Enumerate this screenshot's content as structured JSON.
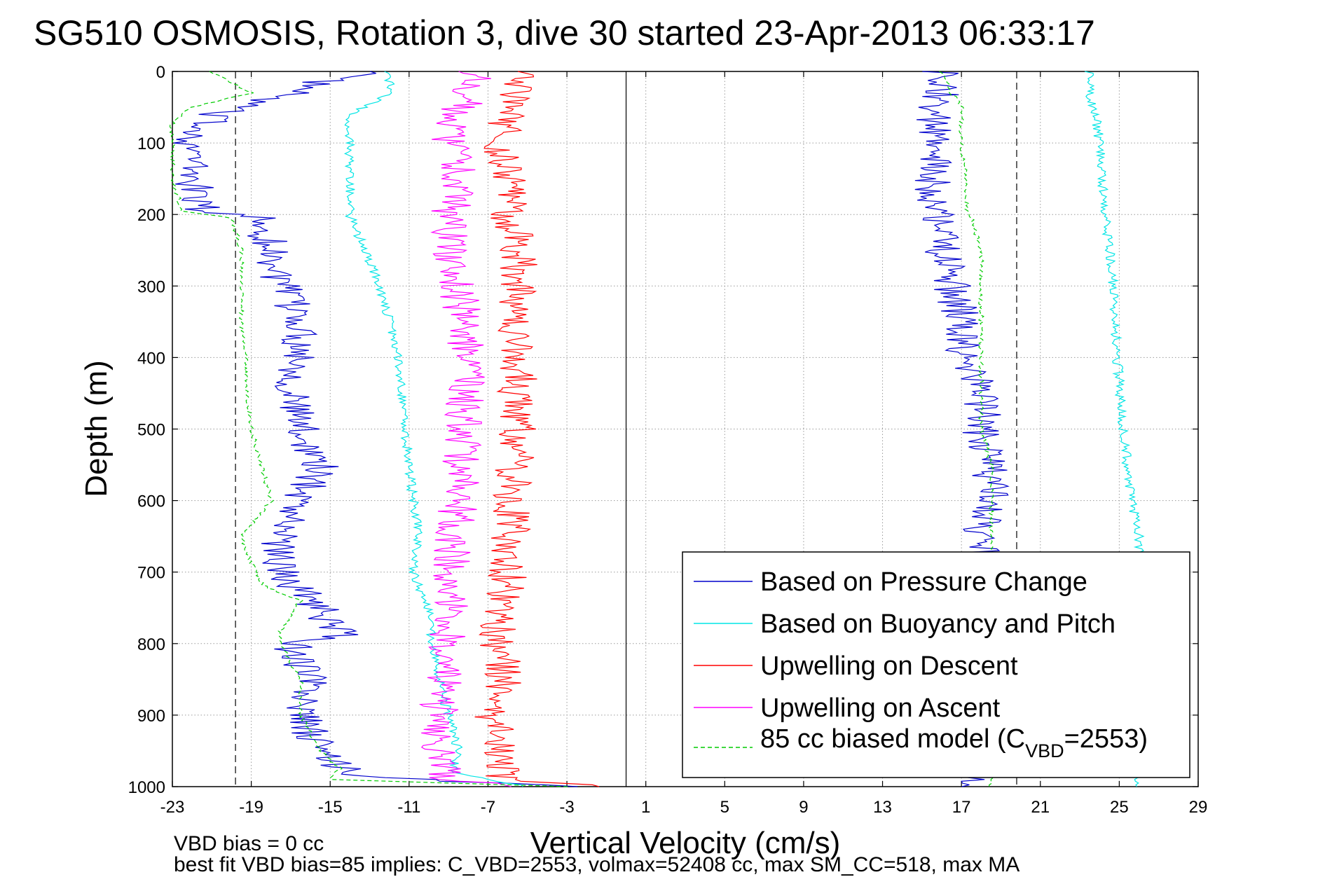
{
  "chart_data": {
    "type": "line",
    "title": "SG510 OSMOSIS, Rotation 3, dive 30 started 23-Apr-2013 06:33:17",
    "xlabel": "Vertical Velocity (cm/s)",
    "ylabel": "Depth (m)",
    "xlim": [
      -23,
      29
    ],
    "ylim": [
      0,
      1000
    ],
    "y_reversed": true,
    "grid": true,
    "legend_placement": "lower-right",
    "x_ticks": [
      "-23",
      "-19",
      "-15",
      "-11",
      "-7",
      "-3",
      "1",
      "5",
      "9",
      "13",
      "17",
      "21",
      "25",
      "29"
    ],
    "y_ticks": [
      "0",
      "100",
      "200",
      "300",
      "400",
      "500",
      "600",
      "700",
      "800",
      "900",
      "1000"
    ],
    "reference_lines": {
      "solid_x": 0,
      "dashed_x": [
        -19.8,
        19.8
      ]
    },
    "series": [
      {
        "name": "Based on Pressure Change",
        "color": "#0000cc",
        "style": "solid",
        "depth": [
          0,
          10,
          30,
          60,
          100,
          150,
          195,
          205,
          250,
          300,
          350,
          400,
          450,
          500,
          550,
          600,
          650,
          700,
          750,
          790,
          800,
          850,
          900,
          950,
          985,
          1000
        ],
        "descent": [
          -12,
          -15,
          -17,
          -21,
          -22,
          -22,
          -21.5,
          -18.5,
          -18,
          -17.5,
          -16.5,
          -16.5,
          -17,
          -16.5,
          -15.5,
          -16.5,
          -17.5,
          -17.5,
          -15.5,
          -14.5,
          -17,
          -16,
          -16.5,
          -15.5,
          -14,
          -3
        ],
        "ascent": [
          16,
          15.5,
          16,
          15.5,
          15.5,
          15.5,
          15.5,
          16,
          16,
          16.5,
          17,
          17,
          18,
          18,
          18.5,
          18.5,
          18,
          18,
          18,
          18,
          18,
          18,
          18,
          18,
          18,
          18
        ]
      },
      {
        "name": "Based on Buoyancy and Pitch",
        "color": "#00e5e5",
        "style": "solid",
        "depth": [
          0,
          30,
          60,
          100,
          200,
          300,
          400,
          500,
          600,
          650,
          700,
          750,
          800,
          850,
          900,
          950,
          980,
          1000
        ],
        "descent": [
          -12,
          -12,
          -14,
          -14,
          -14,
          -12.5,
          -11.5,
          -11.2,
          -10.8,
          -10.5,
          -10.8,
          -10,
          -9.8,
          -9.5,
          -9,
          -8.5,
          -8.8,
          -5
        ],
        "ascent": [
          23.5,
          23.5,
          23.8,
          24,
          24.3,
          24.7,
          24.9,
          25.2,
          25.6,
          26,
          26,
          26,
          26,
          26,
          26,
          26,
          26,
          26
        ]
      },
      {
        "name": "Upwelling on Descent",
        "color": "#ff0000",
        "style": "solid",
        "depth": [
          0,
          20,
          60,
          100,
          150,
          200,
          250,
          300,
          400,
          500,
          600,
          700,
          800,
          850,
          900,
          950,
          990,
          1000
        ],
        "descent": [
          -4.5,
          -5.5,
          -6,
          -6.5,
          -5.8,
          -6,
          -5.5,
          -5.5,
          -5.5,
          -5.5,
          -5.8,
          -6,
          -6.5,
          -6.2,
          -6.8,
          -6.5,
          -6.2,
          -1
        ]
      },
      {
        "name": "Upwelling on Ascent",
        "color": "#ff00ff",
        "style": "solid",
        "depth": [
          0,
          20,
          60,
          100,
          150,
          200,
          250,
          300,
          400,
          500,
          600,
          700,
          800,
          850,
          900,
          950,
          990,
          1000
        ],
        "descent": [
          -7.5,
          -7.8,
          -8.5,
          -9,
          -8.5,
          -9,
          -9,
          -8.5,
          -8,
          -8.3,
          -8.5,
          -9,
          -9,
          -9.3,
          -9.5,
          -9.5,
          -9,
          -6
        ]
      },
      {
        "name": "85 cc biased model (C_VBD=2553)",
        "color": "#00cc00",
        "style": "dashed",
        "depth": [
          0,
          30,
          50,
          70,
          100,
          150,
          195,
          205,
          250,
          300,
          350,
          400,
          450,
          500,
          550,
          600,
          650,
          700,
          720,
          740,
          780,
          800,
          850,
          900,
          950,
          975,
          990,
          1000
        ],
        "descent": [
          -21,
          -19,
          -22,
          -23,
          -23,
          -23,
          -22.5,
          -20,
          -19.5,
          -19.5,
          -19.5,
          -19.3,
          -19.2,
          -19,
          -18.5,
          -18,
          -19.5,
          -18.8,
          -18.3,
          -16.5,
          -17.5,
          -17.5,
          -16.5,
          -16.5,
          -15.5,
          -14.5,
          -15,
          -3
        ],
        "ascent": [
          16,
          16.5,
          17,
          17,
          17,
          17.2,
          17.3,
          17.5,
          18,
          18,
          18,
          18,
          18,
          18,
          18.5,
          18.5,
          18.5,
          18.5,
          18.5,
          18.5,
          18.5,
          18.5,
          18.5,
          18.5,
          18.5,
          18.5,
          18.5,
          18.5
        ]
      }
    ],
    "legend_labels": {
      "main": "85 cc biased model (C",
      "sub": "VBD",
      "tail": "=2553)"
    },
    "footer": {
      "line1": "VBD bias = 0 cc",
      "line2": "best fit VBD bias=85 implies: C_VBD=2553, volmax=52408 cc, max SM_CC=518, max MA"
    }
  }
}
